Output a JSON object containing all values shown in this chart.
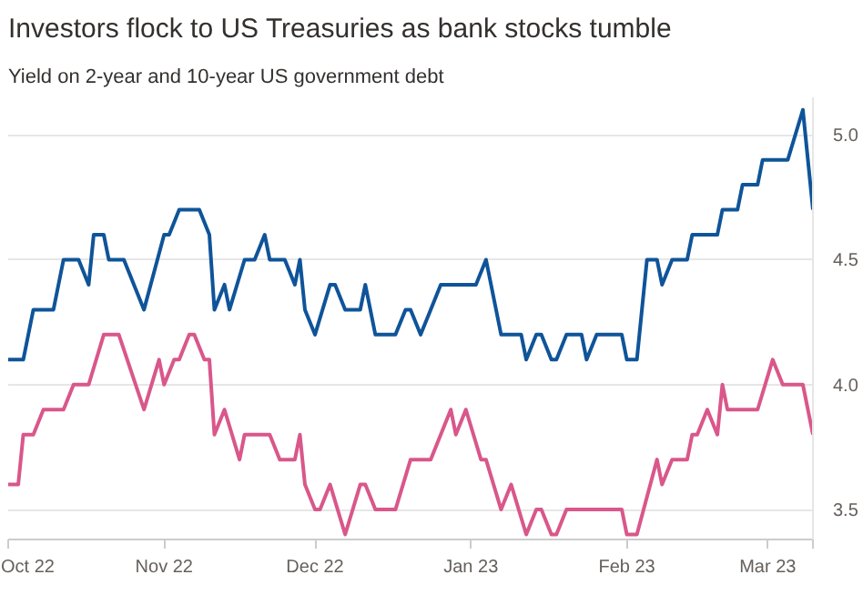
{
  "chart_data": {
    "type": "line",
    "title": "Investors flock to US Treasuries as bank stocks tumble",
    "subtitle": "Yield on 2-year and 10-year US government debt",
    "series": [
      {
        "color": "#0f5499",
        "x": [
          "2022-10-01",
          "2022-10-04",
          "2022-10-06",
          "2022-10-10",
          "2022-10-12",
          "2022-10-15",
          "2022-10-17",
          "2022-10-18",
          "2022-10-20",
          "2022-10-21",
          "2022-10-24",
          "2022-10-28",
          "2022-11-01",
          "2022-11-02",
          "2022-11-04",
          "2022-11-08",
          "2022-11-10",
          "2022-11-11",
          "2022-11-13",
          "2022-11-14",
          "2022-11-17",
          "2022-11-19",
          "2022-11-21",
          "2022-11-22",
          "2022-11-25",
          "2022-11-27",
          "2022-11-28",
          "2022-11-29",
          "2022-12-01",
          "2022-12-04",
          "2022-12-05",
          "2022-12-07",
          "2022-12-10",
          "2022-12-11",
          "2022-12-13",
          "2022-12-17",
          "2022-12-19",
          "2022-12-20",
          "2022-12-22",
          "2022-12-24",
          "2022-12-26",
          "2023-01-02",
          "2023-01-04",
          "2023-01-06",
          "2023-01-07",
          "2023-01-11",
          "2023-01-12",
          "2023-01-14",
          "2023-01-15",
          "2023-01-17",
          "2023-01-18",
          "2023-01-20",
          "2023-01-23",
          "2023-01-24",
          "2023-01-26",
          "2023-01-31",
          "2023-02-01",
          "2023-02-03",
          "2023-02-05",
          "2023-02-07",
          "2023-02-08",
          "2023-02-10",
          "2023-02-13",
          "2023-02-14",
          "2023-02-19",
          "2023-02-20",
          "2023-02-23",
          "2023-02-24",
          "2023-02-27",
          "2023-02-28",
          "2023-03-05",
          "2023-03-08",
          "2023-03-10"
        ],
        "values": [
          4.1,
          4.1,
          4.3,
          4.3,
          4.5,
          4.5,
          4.4,
          4.6,
          4.6,
          4.5,
          4.5,
          4.3,
          4.6,
          4.6,
          4.7,
          4.7,
          4.6,
          4.3,
          4.4,
          4.3,
          4.5,
          4.5,
          4.6,
          4.5,
          4.5,
          4.4,
          4.5,
          4.3,
          4.2,
          4.4,
          4.4,
          4.3,
          4.3,
          4.4,
          4.2,
          4.2,
          4.3,
          4.3,
          4.2,
          4.3,
          4.4,
          4.4,
          4.5,
          4.3,
          4.2,
          4.2,
          4.1,
          4.2,
          4.2,
          4.1,
          4.1,
          4.2,
          4.2,
          4.1,
          4.2,
          4.2,
          4.1,
          4.1,
          4.5,
          4.5,
          4.4,
          4.5,
          4.5,
          4.6,
          4.6,
          4.7,
          4.7,
          4.8,
          4.8,
          4.9,
          4.9,
          5.1,
          4.7
        ]
      },
      {
        "color": "#d9578a",
        "x": [
          "2022-10-01",
          "2022-10-03",
          "2022-10-04",
          "2022-10-06",
          "2022-10-08",
          "2022-10-12",
          "2022-10-14",
          "2022-10-17",
          "2022-10-20",
          "2022-10-23",
          "2022-10-28",
          "2022-10-31",
          "2022-11-01",
          "2022-11-03",
          "2022-11-04",
          "2022-11-06",
          "2022-11-07",
          "2022-11-09",
          "2022-11-10",
          "2022-11-11",
          "2022-11-13",
          "2022-11-16",
          "2022-11-17",
          "2022-11-22",
          "2022-11-24",
          "2022-11-27",
          "2022-11-28",
          "2022-11-29",
          "2022-12-01",
          "2022-12-02",
          "2022-12-04",
          "2022-12-07",
          "2022-12-10",
          "2022-12-11",
          "2022-12-13",
          "2022-12-17",
          "2022-12-20",
          "2022-12-24",
          "2022-12-28",
          "2022-12-29",
          "2022-12-31",
          "2023-01-03",
          "2023-01-04",
          "2023-01-07",
          "2023-01-09",
          "2023-01-12",
          "2023-01-14",
          "2023-01-15",
          "2023-01-17",
          "2023-01-18",
          "2023-01-20",
          "2023-01-31",
          "2023-02-01",
          "2023-02-03",
          "2023-02-07",
          "2023-02-08",
          "2023-02-10",
          "2023-02-13",
          "2023-02-14",
          "2023-02-15",
          "2023-02-17",
          "2023-02-19",
          "2023-02-20",
          "2023-02-21",
          "2023-02-27",
          "2023-03-02",
          "2023-03-04",
          "2023-03-08",
          "2023-03-10"
        ],
        "values": [
          3.6,
          3.6,
          3.8,
          3.8,
          3.9,
          3.9,
          4.0,
          4.0,
          4.2,
          4.2,
          3.9,
          4.1,
          4.0,
          4.1,
          4.1,
          4.2,
          4.2,
          4.1,
          4.1,
          3.8,
          3.9,
          3.7,
          3.8,
          3.8,
          3.7,
          3.7,
          3.8,
          3.6,
          3.5,
          3.5,
          3.6,
          3.4,
          3.6,
          3.6,
          3.5,
          3.5,
          3.7,
          3.7,
          3.9,
          3.8,
          3.9,
          3.7,
          3.7,
          3.5,
          3.6,
          3.4,
          3.5,
          3.5,
          3.4,
          3.4,
          3.5,
          3.5,
          3.4,
          3.4,
          3.7,
          3.6,
          3.7,
          3.7,
          3.8,
          3.8,
          3.9,
          3.8,
          4.0,
          3.9,
          3.9,
          4.1,
          4.0,
          4.0,
          3.8
        ]
      }
    ],
    "xlim": [
      "2022-10-01",
      "2023-03-10"
    ],
    "xticks": [
      {
        "value": "2022-10-01",
        "label": "Oct 22"
      },
      {
        "value": "2022-11-01",
        "label": "Nov 22"
      },
      {
        "value": "2022-12-01",
        "label": "Dec 22"
      },
      {
        "value": "2023-01-01",
        "label": "Jan 23"
      },
      {
        "value": "2023-02-01",
        "label": "Feb 23"
      },
      {
        "value": "2023-03-01",
        "label": "Mar 23"
      },
      {
        "value": "2023-03-10",
        "label": null
      }
    ],
    "ylim": [
      3.38,
      5.15
    ],
    "yticks": [
      3.5,
      {
        "value": 4,
        "label": "4.0"
      },
      4.5,
      {
        "value": 5,
        "label": "5.0"
      }
    ],
    "grid": "y",
    "line_style": "solid"
  }
}
